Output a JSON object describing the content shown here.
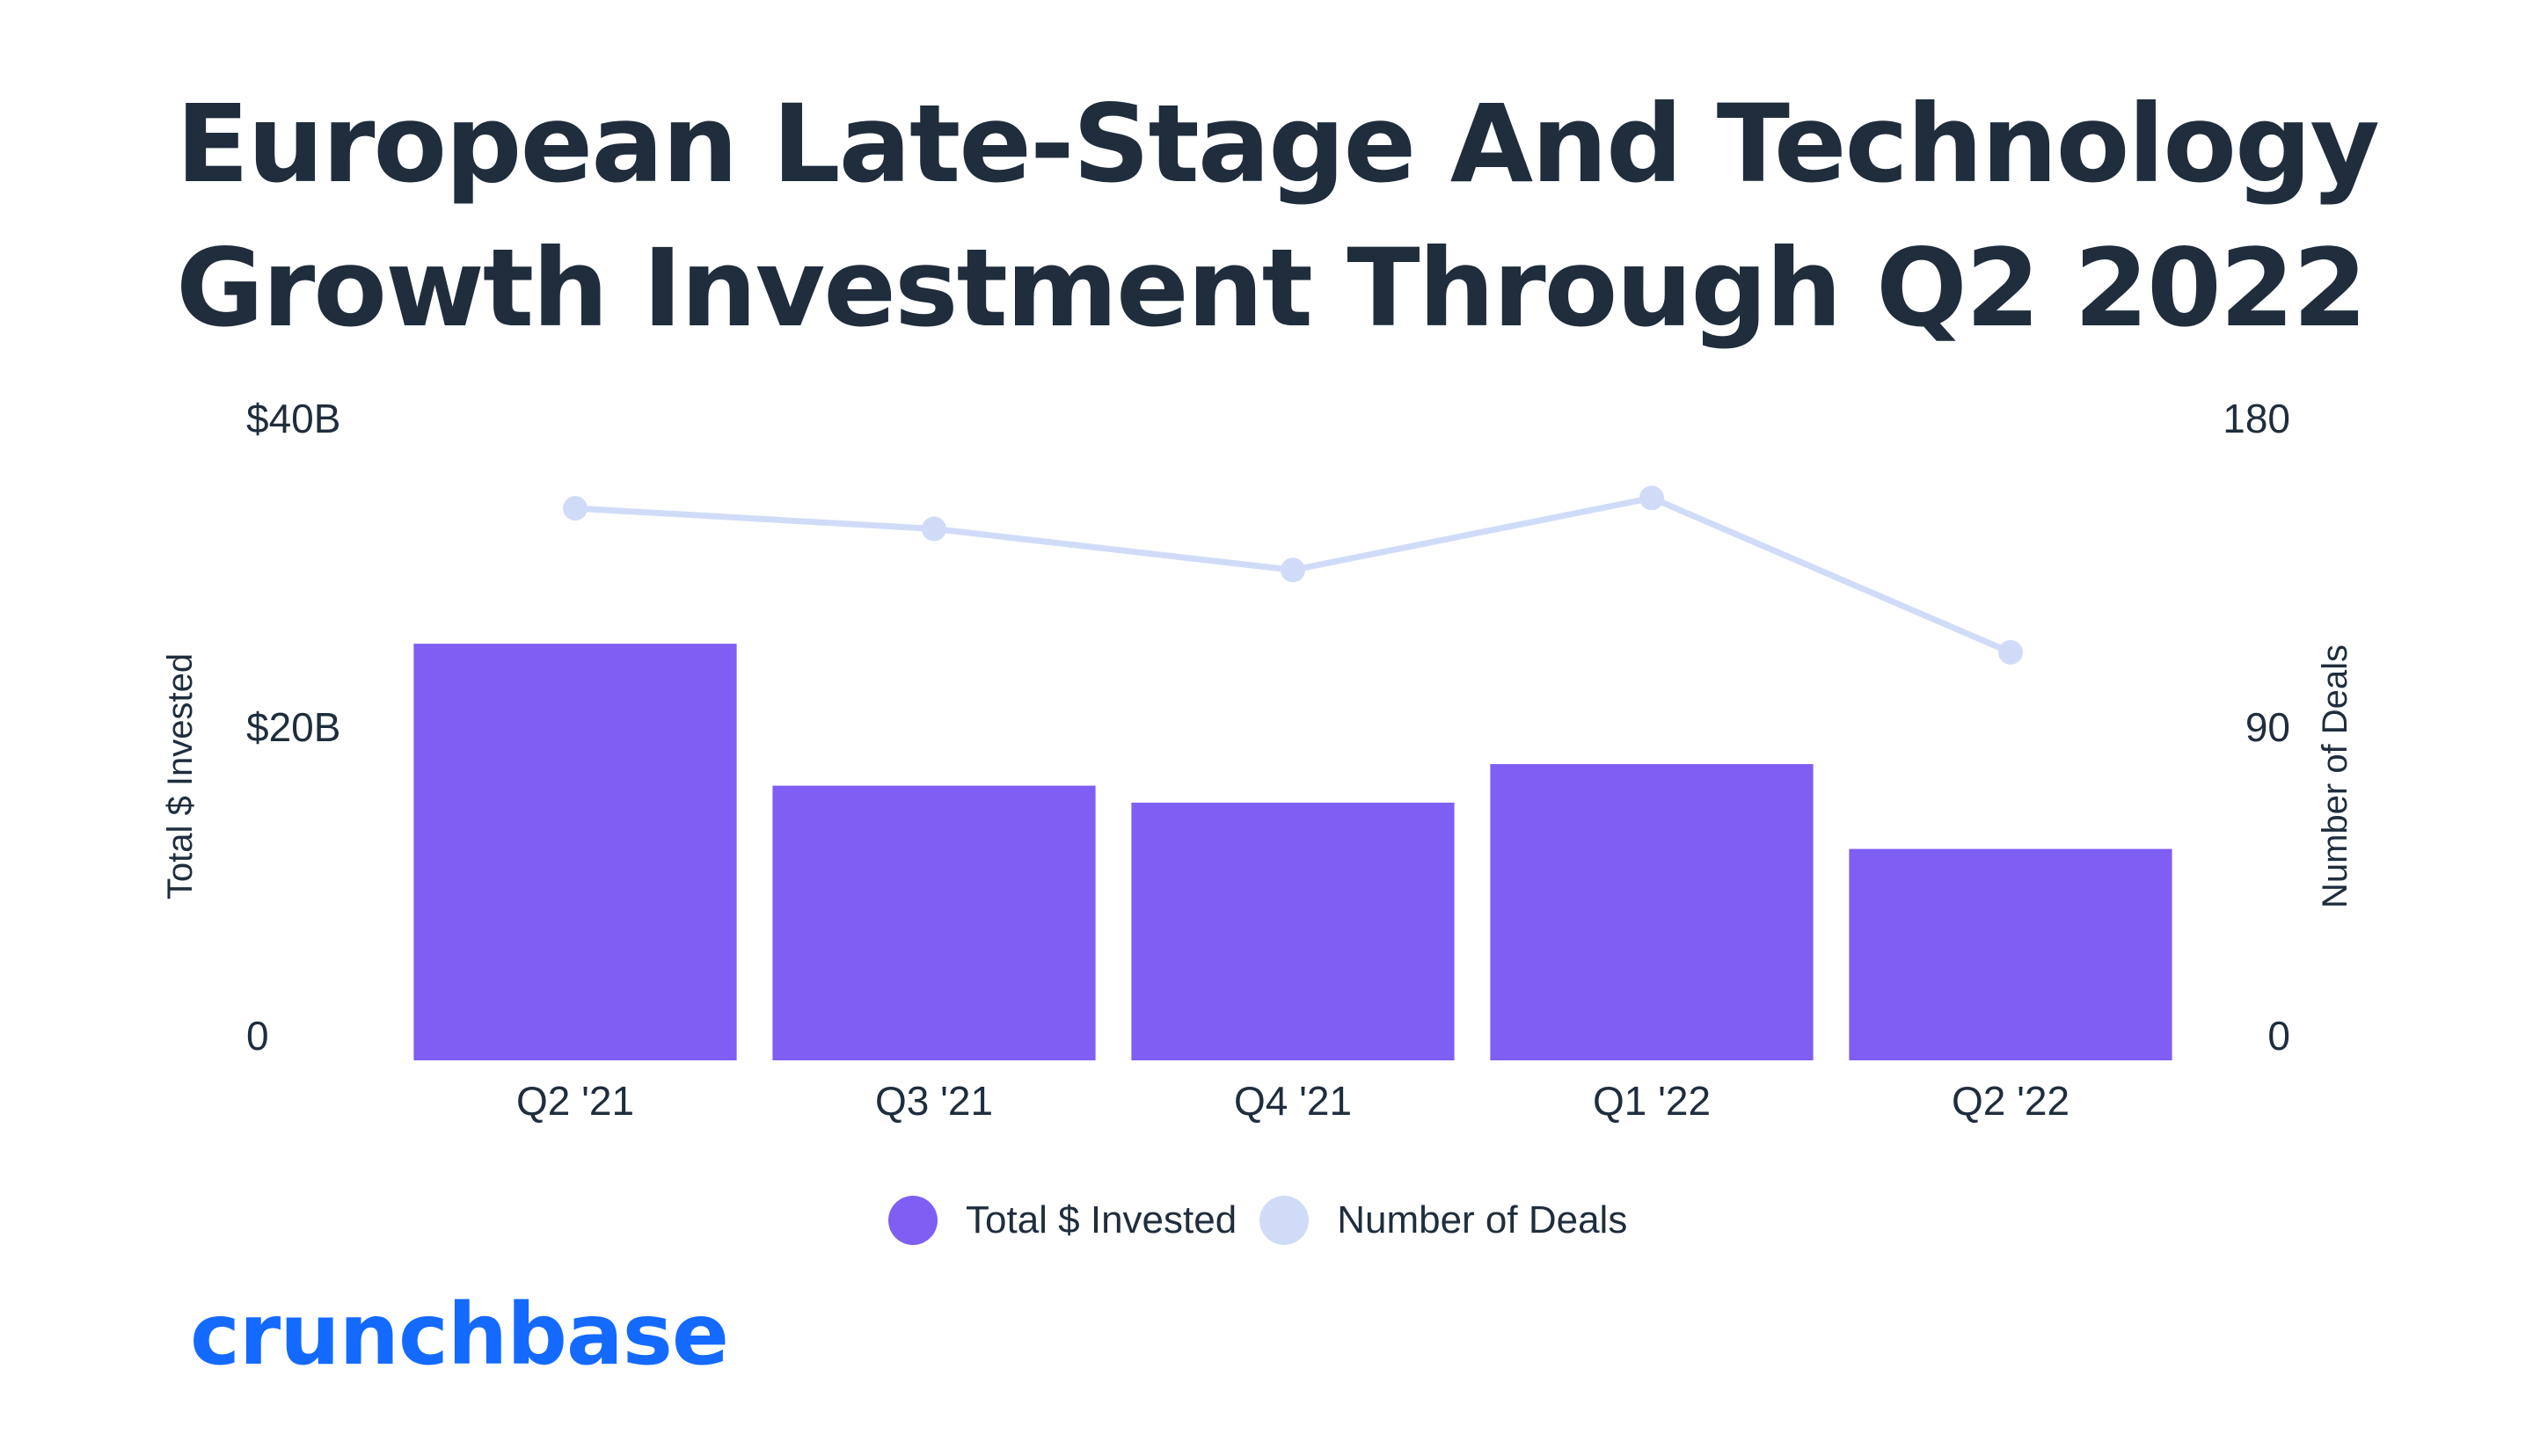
{
  "title_lines": [
    "European Late-Stage And Technology",
    "Growth Investment Through Q2 2022"
  ],
  "chart_data": {
    "type": "bar",
    "title": "European Late-Stage And Technology Growth Investment Through Q2 2022",
    "categories": [
      "Q2 '21",
      "Q3 '21",
      "Q4 '21",
      "Q1 '22",
      "Q2 '22"
    ],
    "series": [
      {
        "name": "Total $ Invested",
        "type": "bar",
        "axis": "left",
        "color": "#7f5ef3",
        "values": [
          27.0,
          17.8,
          16.7,
          19.2,
          13.7
        ]
      },
      {
        "name": "Number of Deals",
        "type": "line",
        "axis": "right",
        "color": "#d0dcf7",
        "values": [
          161,
          155,
          143,
          164,
          119
        ]
      }
    ],
    "ylabel": "Total $ Invested",
    "ylabel_right": "Number of Deals",
    "ylim": [
      0,
      40
    ],
    "ylim_right": [
      0,
      180
    ],
    "y_ticks": [
      {
        "value": 0,
        "label": "0"
      },
      {
        "value": 20,
        "label": "$20B"
      },
      {
        "value": 40,
        "label": "$40B"
      }
    ],
    "y_ticks_right": [
      {
        "value": 0,
        "label": "0"
      },
      {
        "value": 90,
        "label": "90"
      },
      {
        "value": 180,
        "label": "180"
      }
    ],
    "grid": false,
    "legend_position": "bottom-center"
  },
  "logo": {
    "text": "crunchbase",
    "color": "#146aff"
  }
}
